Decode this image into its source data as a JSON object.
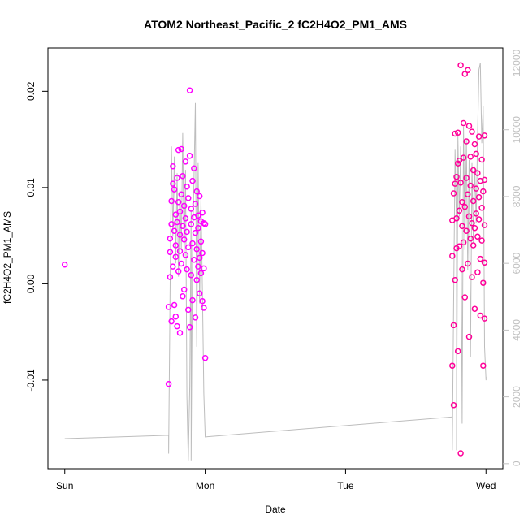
{
  "chart_data": {
    "type": "scatter",
    "title": "ATOM2 Northeast_Pacific_2 fC2H4O2_PM1_AMS",
    "xlabel": "Date",
    "ylabel": "fC2H4O2_PM1_AMS",
    "x_axis": {
      "unit": "days since Sun 00:00",
      "ticks": [
        {
          "value": 0,
          "label": "Sun"
        },
        {
          "value": 1,
          "label": "Mon"
        },
        {
          "value": 2,
          "label": "Tue"
        },
        {
          "value": 3,
          "label": "Wed"
        }
      ],
      "range": [
        -0.12,
        3.12
      ]
    },
    "y_left": {
      "ticks": [
        {
          "value": -0.01,
          "label": "-0.01"
        },
        {
          "value": 0.0,
          "label": "0.00"
        },
        {
          "value": 0.01,
          "label": "0.01"
        },
        {
          "value": 0.02,
          "label": "0.02"
        }
      ],
      "range": [
        -0.0192,
        0.0245
      ]
    },
    "y_right": {
      "ticks": [
        {
          "value": 0,
          "label": "0"
        },
        {
          "value": 2000,
          "label": "2000"
        },
        {
          "value": 4000,
          "label": "4000"
        },
        {
          "value": 6000,
          "label": "6000"
        },
        {
          "value": 8000,
          "label": "8000"
        },
        {
          "value": 10000,
          "label": "10000"
        },
        {
          "value": 12000,
          "label": "12000"
        }
      ],
      "range": [
        -150,
        12450
      ],
      "color": "#c0c0c0"
    },
    "grid": false,
    "legend": "none",
    "colors": {
      "segment1": "#ff00ff",
      "segment2": "#ff0099",
      "altitude_line": "#bdbdbd",
      "axis": "#000000"
    },
    "scatter_series": [
      {
        "color": "#ff00ff",
        "points": [
          [
            0.0,
            0.002
          ],
          [
            0.74,
            -0.0104
          ],
          [
            0.74,
            -0.0024
          ],
          [
            0.75,
            0.0047
          ],
          [
            0.75,
            0.0007
          ],
          [
            0.75,
            0.0033
          ],
          [
            0.76,
            -0.0039
          ],
          [
            0.76,
            0.0086
          ],
          [
            0.76,
            0.0062
          ],
          [
            0.77,
            0.0104
          ],
          [
            0.77,
            0.0122
          ],
          [
            0.77,
            0.0018
          ],
          [
            0.78,
            0.0055
          ],
          [
            0.78,
            -0.0022
          ],
          [
            0.78,
            0.0098
          ],
          [
            0.79,
            0.0072
          ],
          [
            0.79,
            0.004
          ],
          [
            0.79,
            -0.0034
          ],
          [
            0.79,
            0.0028
          ],
          [
            0.8,
            0.011
          ],
          [
            0.8,
            0.0064
          ],
          [
            0.8,
            -0.0044
          ],
          [
            0.81,
            0.0013
          ],
          [
            0.81,
            0.0085
          ],
          [
            0.81,
            0.0139
          ],
          [
            0.82,
            0.0051
          ],
          [
            0.82,
            0.0034
          ],
          [
            0.82,
            -0.0051
          ],
          [
            0.82,
            0.0075
          ],
          [
            0.83,
            0.0093
          ],
          [
            0.83,
            0.0021
          ],
          [
            0.83,
            0.014
          ],
          [
            0.84,
            0.006
          ],
          [
            0.84,
            -0.0013
          ],
          [
            0.84,
            0.0112
          ],
          [
            0.85,
            0.0046
          ],
          [
            0.85,
            0.0081
          ],
          [
            0.85,
            -0.0006
          ],
          [
            0.86,
            0.0127
          ],
          [
            0.86,
            0.003
          ],
          [
            0.86,
            0.0068
          ],
          [
            0.87,
            0.0101
          ],
          [
            0.87,
            0.0015
          ],
          [
            0.87,
            0.0054
          ],
          [
            0.88,
            -0.0027
          ],
          [
            0.88,
            0.0089
          ],
          [
            0.88,
            0.0038
          ],
          [
            0.89,
            0.0201
          ],
          [
            0.89,
            0.0133
          ],
          [
            0.89,
            -0.0045
          ],
          [
            0.9,
            0.0062
          ],
          [
            0.9,
            0.0009
          ],
          [
            0.9,
            0.0078
          ],
          [
            0.91,
            0.0107
          ],
          [
            0.91,
            0.0042
          ],
          [
            0.91,
            -0.0017
          ],
          [
            0.92,
            0.0069
          ],
          [
            0.92,
            0.0025
          ],
          [
            0.92,
            0.012
          ],
          [
            0.93,
            0.0053
          ],
          [
            0.93,
            -0.0035
          ],
          [
            0.93,
            0.0083
          ],
          [
            0.94,
            0.0036
          ],
          [
            0.94,
            0.0096
          ],
          [
            0.94,
            0.0004
          ],
          [
            0.95,
            0.0071
          ],
          [
            0.95,
            0.0018
          ],
          [
            0.95,
            0.0058
          ],
          [
            0.96,
            0.0091
          ],
          [
            0.96,
            0.0027
          ],
          [
            0.96,
            -0.001
          ],
          [
            0.97,
            0.0065
          ],
          [
            0.97,
            0.0044
          ],
          [
            0.97,
            0.0011
          ],
          [
            0.98,
            0.0074
          ],
          [
            0.98,
            -0.0018
          ],
          [
            0.98,
            0.0032
          ],
          [
            0.99,
            0.0063
          ],
          [
            0.99,
            -0.0025
          ],
          [
            0.99,
            0.0016
          ],
          [
            1.0,
            -0.0077
          ],
          [
            1.0,
            0.0062
          ]
        ]
      },
      {
        "color": "#ff0099",
        "points": [
          [
            2.76,
            -0.0085
          ],
          [
            2.76,
            0.0029
          ],
          [
            2.76,
            0.0066
          ],
          [
            2.77,
            -0.0126
          ],
          [
            2.77,
            0.0094
          ],
          [
            2.77,
            -0.0043
          ],
          [
            2.78,
            0.0104
          ],
          [
            2.78,
            0.0156
          ],
          [
            2.78,
            0.0004
          ],
          [
            2.79,
            0.0068
          ],
          [
            2.79,
            0.0111
          ],
          [
            2.79,
            0.0037
          ],
          [
            2.8,
            0.0157
          ],
          [
            2.8,
            0.0125
          ],
          [
            2.8,
            -0.007
          ],
          [
            2.81,
            0.0039
          ],
          [
            2.81,
            0.0076
          ],
          [
            2.81,
            0.0128
          ],
          [
            2.82,
            0.0227
          ],
          [
            2.82,
            0.0105
          ],
          [
            2.82,
            -0.0176
          ],
          [
            2.83,
            0.0085
          ],
          [
            2.83,
            0.0015
          ],
          [
            2.83,
            0.006
          ],
          [
            2.84,
            0.0167
          ],
          [
            2.84,
            0.0131
          ],
          [
            2.84,
            0.0043
          ],
          [
            2.85,
            0.0218
          ],
          [
            2.85,
            0.008
          ],
          [
            2.85,
            -0.0014
          ],
          [
            2.86,
            0.011
          ],
          [
            2.86,
            0.0148
          ],
          [
            2.86,
            0.0055
          ],
          [
            2.87,
            0.0222
          ],
          [
            2.87,
            0.0093
          ],
          [
            2.87,
            0.0021
          ],
          [
            2.88,
            0.0164
          ],
          [
            2.88,
            0.007
          ],
          [
            2.88,
            -0.0055
          ],
          [
            2.89,
            0.0132
          ],
          [
            2.89,
            0.0047
          ],
          [
            2.89,
            0.0102
          ],
          [
            2.9,
            0.0158
          ],
          [
            2.9,
            0.0063
          ],
          [
            2.9,
            0.0007
          ],
          [
            2.91,
            0.0118
          ],
          [
            2.91,
            0.0086
          ],
          [
            2.91,
            0.004
          ],
          [
            2.92,
            0.0145
          ],
          [
            2.92,
            0.0058
          ],
          [
            2.92,
            -0.0026
          ],
          [
            2.93,
            0.0099
          ],
          [
            2.93,
            0.0135
          ],
          [
            2.93,
            0.0073
          ],
          [
            2.94,
            0.0049
          ],
          [
            2.94,
            0.0115
          ],
          [
            2.94,
            0.0012
          ],
          [
            2.95,
            0.009
          ],
          [
            2.95,
            0.0153
          ],
          [
            2.95,
            0.0067
          ],
          [
            2.96,
            0.0026
          ],
          [
            2.96,
            0.0107
          ],
          [
            2.96,
            -0.0033
          ],
          [
            2.97,
            0.0079
          ],
          [
            2.97,
            0.0129
          ],
          [
            2.97,
            0.0045
          ],
          [
            2.98,
            0.0001
          ],
          [
            2.98,
            0.0096
          ],
          [
            2.98,
            -0.0085
          ],
          [
            2.99,
            0.0154
          ],
          [
            2.99,
            0.0061
          ],
          [
            2.99,
            0.0108
          ],
          [
            2.99,
            -0.0036
          ],
          [
            2.99,
            0.0022
          ]
        ]
      }
    ],
    "altitude_line": {
      "color": "#bdbdbd",
      "points": [
        [
          0.0,
          750
        ],
        [
          0.74,
          850
        ],
        [
          0.74,
          300
        ],
        [
          0.75,
          5200
        ],
        [
          0.76,
          9500
        ],
        [
          0.77,
          6800
        ],
        [
          0.78,
          9200
        ],
        [
          0.79,
          6000
        ],
        [
          0.8,
          8700
        ],
        [
          0.81,
          5600
        ],
        [
          0.82,
          8300
        ],
        [
          0.83,
          6400
        ],
        [
          0.84,
          9900
        ],
        [
          0.85,
          6100
        ],
        [
          0.86,
          8800
        ],
        [
          0.87,
          2000
        ],
        [
          0.88,
          100
        ],
        [
          0.89,
          2300
        ],
        [
          0.9,
          7600
        ],
        [
          0.9,
          100
        ],
        [
          0.91,
          6400
        ],
        [
          0.92,
          8500
        ],
        [
          0.93,
          10800
        ],
        [
          0.94,
          3500
        ],
        [
          0.95,
          9000
        ],
        [
          0.96,
          4800
        ],
        [
          0.97,
          7900
        ],
        [
          0.98,
          5300
        ],
        [
          0.99,
          2100
        ],
        [
          1.0,
          800
        ],
        [
          2.76,
          1400
        ],
        [
          2.76,
          400
        ],
        [
          2.77,
          5000
        ],
        [
          2.78,
          9400
        ],
        [
          2.79,
          7100
        ],
        [
          2.79,
          400
        ],
        [
          2.8,
          9800
        ],
        [
          2.81,
          7400
        ],
        [
          2.82,
          9500
        ],
        [
          2.83,
          1200
        ],
        [
          2.84,
          10100
        ],
        [
          2.85,
          6400
        ],
        [
          2.86,
          9700
        ],
        [
          2.87,
          5800
        ],
        [
          2.88,
          9100
        ],
        [
          2.89,
          3200
        ],
        [
          2.9,
          9000
        ],
        [
          2.91,
          6600
        ],
        [
          2.92,
          8900
        ],
        [
          2.93,
          7200
        ],
        [
          2.94,
          9800
        ],
        [
          2.95,
          11800
        ],
        [
          2.96,
          12000
        ],
        [
          2.97,
          9600
        ],
        [
          2.98,
          10700
        ],
        [
          2.99,
          3500
        ],
        [
          3.0,
          2500
        ],
        [
          3.0,
          2600
        ]
      ]
    }
  }
}
